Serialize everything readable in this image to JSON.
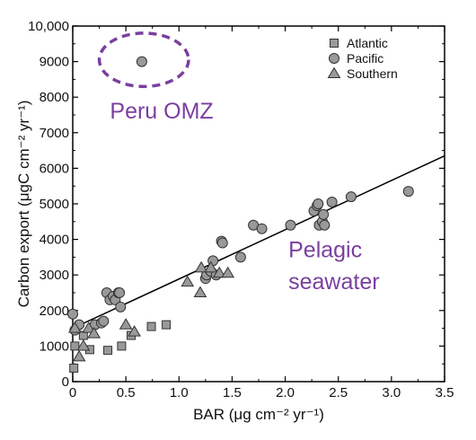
{
  "colors": {
    "marker_fill": "#999999",
    "marker_stroke": "#333333",
    "annotation": "#7a3f9e",
    "fit_line": "#000000"
  },
  "chart_data": {
    "type": "scatter",
    "title": "",
    "xlabel": "BAR (μg cm⁻² yr⁻¹)",
    "ylabel": "Carbon export (μgC cm⁻² yr⁻¹)",
    "xlim": [
      0,
      3.5
    ],
    "ylim": [
      0,
      10000
    ],
    "x_ticks": [
      "0",
      "0.5",
      "1.0",
      "1.5",
      "2.0",
      "2.5",
      "3.0",
      "3.5"
    ],
    "y_ticks": [
      "0",
      "1000",
      "2000",
      "3000",
      "4000",
      "5000",
      "6000",
      "7000",
      "8000",
      "9000",
      "10,000"
    ],
    "legend_position": "top-right",
    "grid": false,
    "series": [
      {
        "name": "Atlantic",
        "marker": "square",
        "points": [
          [
            0.01,
            380
          ],
          [
            0.02,
            1000
          ],
          [
            0.1,
            1300
          ],
          [
            0.16,
            900
          ],
          [
            0.33,
            880
          ],
          [
            0.46,
            1000
          ],
          [
            0.55,
            1300
          ],
          [
            0.74,
            1550
          ],
          [
            0.88,
            1600
          ]
        ]
      },
      {
        "name": "Pacific",
        "marker": "circle",
        "points": [
          [
            0.65,
            9000
          ],
          [
            0.0,
            1900
          ],
          [
            0.02,
            1450
          ],
          [
            0.06,
            1600
          ],
          [
            0.21,
            1600
          ],
          [
            0.27,
            1650
          ],
          [
            0.29,
            1700
          ],
          [
            0.32,
            2500
          ],
          [
            0.35,
            2300
          ],
          [
            0.38,
            2400
          ],
          [
            0.4,
            2300
          ],
          [
            0.43,
            2500
          ],
          [
            0.44,
            2500
          ],
          [
            0.45,
            2100
          ],
          [
            1.25,
            2900
          ],
          [
            1.26,
            3000
          ],
          [
            1.3,
            3100
          ],
          [
            1.32,
            3400
          ],
          [
            1.35,
            3000
          ],
          [
            1.4,
            3950
          ],
          [
            1.41,
            3900
          ],
          [
            1.58,
            3500
          ],
          [
            1.7,
            4400
          ],
          [
            1.78,
            4300
          ],
          [
            2.05,
            4400
          ],
          [
            2.27,
            4800
          ],
          [
            2.3,
            4950
          ],
          [
            2.31,
            5000
          ],
          [
            2.32,
            4400
          ],
          [
            2.35,
            4500
          ],
          [
            2.36,
            4700
          ],
          [
            2.37,
            4400
          ],
          [
            2.44,
            5050
          ],
          [
            2.62,
            5200
          ],
          [
            3.16,
            5350
          ]
        ]
      },
      {
        "name": "Southern",
        "marker": "triangle",
        "points": [
          [
            0.02,
            1500
          ],
          [
            0.06,
            700
          ],
          [
            0.1,
            1000
          ],
          [
            0.15,
            1500
          ],
          [
            0.2,
            1350
          ],
          [
            0.5,
            1600
          ],
          [
            0.58,
            1400
          ],
          [
            1.08,
            2800
          ],
          [
            1.2,
            2500
          ],
          [
            1.21,
            3200
          ],
          [
            1.3,
            3200
          ],
          [
            1.38,
            3050
          ],
          [
            1.46,
            3050
          ]
        ]
      }
    ],
    "fit_line": {
      "x": [
        0,
        3.5
      ],
      "y": [
        1500,
        6350
      ]
    },
    "annotations": [
      {
        "text": "Peru OMZ",
        "x": 0.35,
        "y": 7400
      },
      {
        "text": "Pelagic",
        "x": 2.03,
        "y": 3500
      },
      {
        "text": "seawater",
        "x": 2.03,
        "y": 2600
      }
    ],
    "highlight_ellipse": {
      "center": [
        0.67,
        9050
      ],
      "rx": 0.42,
      "ry": 750
    }
  }
}
